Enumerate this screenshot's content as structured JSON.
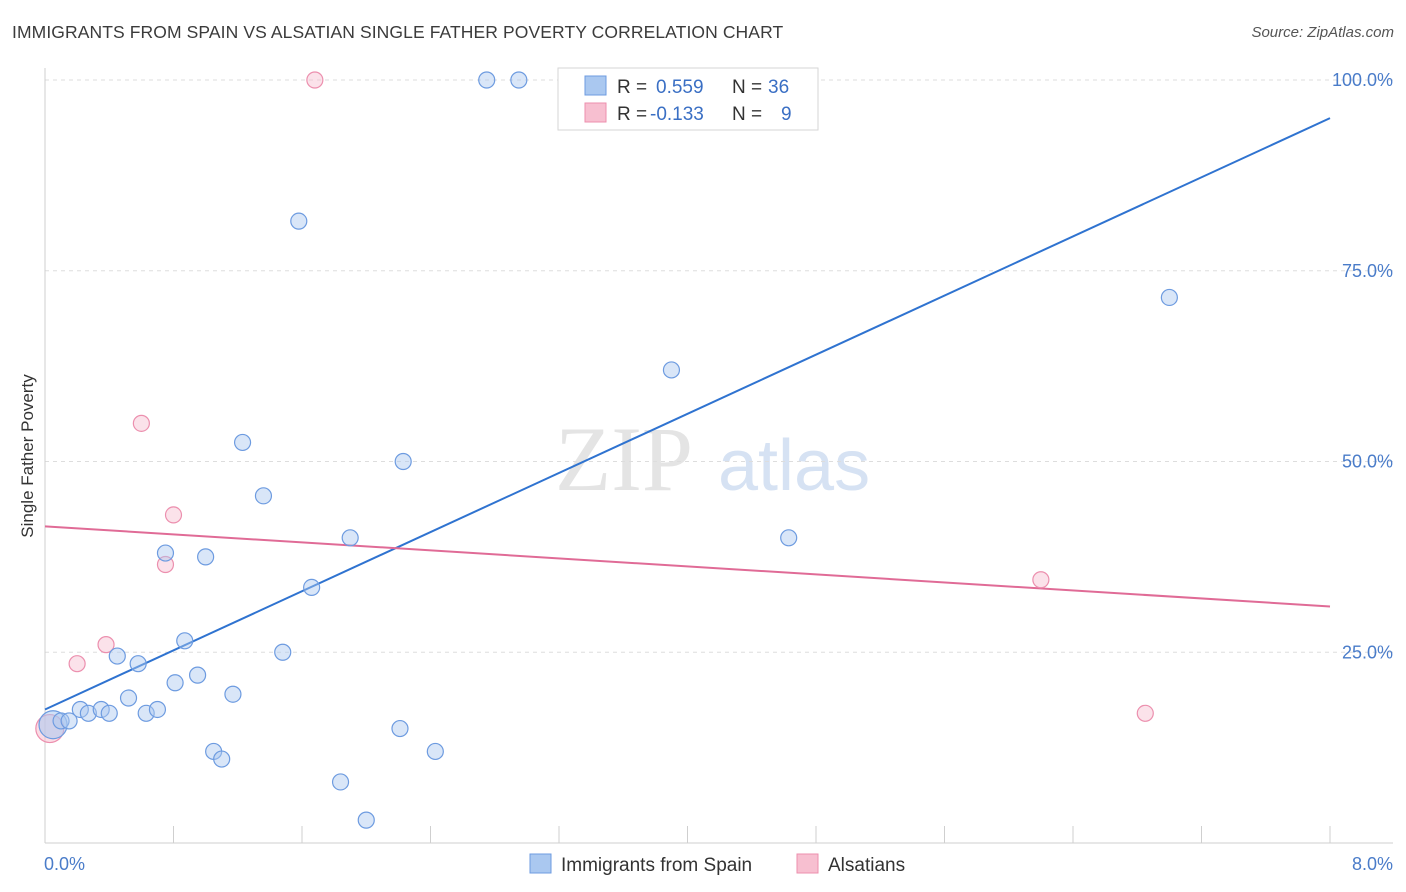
{
  "title": "IMMIGRANTS FROM SPAIN VS ALSATIAN SINGLE FATHER POVERTY CORRELATION CHART",
  "source": "Source: ZipAtlas.com",
  "watermark": {
    "zip": "ZIP",
    "atlas": "atlas"
  },
  "colors": {
    "blue_fill": "#aac8f0",
    "blue_stroke": "#6d9be0",
    "blue_line": "#2f73d0",
    "pink_fill": "#f7bfd0",
    "pink_stroke": "#ec8fae",
    "pink_line": "#e06b96",
    "tick_text": "#4a7cc9",
    "grid": "#dddddd"
  },
  "legend": {
    "rows": [
      {
        "r_label": "R =",
        "r_value": "0.559",
        "n_label": "N =",
        "n_value": "36",
        "series": "blue"
      },
      {
        "r_label": "R =",
        "r_value": "-0.133",
        "n_label": "N =",
        "n_value": "9",
        "series": "pink"
      }
    ]
  },
  "chart_data": {
    "type": "scatter",
    "title": "IMMIGRANTS FROM SPAIN VS ALSATIAN SINGLE FATHER POVERTY CORRELATION CHART",
    "xlabel": "",
    "ylabel": "Single Father Poverty",
    "xlim": [
      0,
      8
    ],
    "ylim": [
      0,
      100
    ],
    "x_tick_labels": [
      "0.0%",
      "8.0%"
    ],
    "y_ticks": [
      25,
      50,
      75,
      100
    ],
    "y_tick_labels": [
      "25.0%",
      "50.0%",
      "75.0%",
      "100.0%"
    ],
    "grid": true,
    "series": [
      {
        "name": "Immigrants from Spain",
        "color": "blue",
        "points": [
          [
            0.05,
            15.5
          ],
          [
            0.1,
            16.0
          ],
          [
            0.15,
            16.0
          ],
          [
            0.22,
            17.5
          ],
          [
            0.27,
            17.0
          ],
          [
            0.35,
            17.5
          ],
          [
            0.4,
            17.0
          ],
          [
            0.45,
            24.5
          ],
          [
            0.52,
            19.0
          ],
          [
            0.58,
            23.5
          ],
          [
            0.63,
            17.0
          ],
          [
            0.7,
            17.5
          ],
          [
            0.75,
            38.0
          ],
          [
            0.81,
            21.0
          ],
          [
            0.87,
            26.5
          ],
          [
            0.95,
            22.0
          ],
          [
            1.0,
            37.5
          ],
          [
            1.05,
            12.0
          ],
          [
            1.1,
            11.0
          ],
          [
            1.17,
            19.5
          ],
          [
            1.23,
            52.5
          ],
          [
            1.36,
            45.5
          ],
          [
            1.48,
            25.0
          ],
          [
            1.58,
            81.5
          ],
          [
            1.66,
            33.5
          ],
          [
            1.84,
            8.0
          ],
          [
            1.9,
            40.0
          ],
          [
            2.0,
            3.0
          ],
          [
            2.21,
            15.0
          ],
          [
            2.23,
            50.0
          ],
          [
            2.43,
            12.0
          ],
          [
            2.75,
            100.0
          ],
          [
            2.95,
            100.0
          ],
          [
            3.9,
            62.0
          ],
          [
            4.63,
            40.0
          ],
          [
            7.0,
            71.5
          ]
        ],
        "trend": {
          "x": [
            0,
            8
          ],
          "y": [
            17.5,
            95.0
          ]
        },
        "R": 0.559,
        "N": 36
      },
      {
        "name": "Alsatians",
        "color": "pink",
        "points": [
          [
            0.03,
            15.0
          ],
          [
            0.2,
            23.5
          ],
          [
            0.38,
            26.0
          ],
          [
            0.6,
            55.0
          ],
          [
            0.75,
            36.5
          ],
          [
            0.8,
            43.0
          ],
          [
            1.68,
            100.0
          ],
          [
            6.2,
            34.5
          ],
          [
            6.85,
            17.0
          ]
        ],
        "trend": {
          "x": [
            0,
            8
          ],
          "y": [
            41.5,
            31.0
          ]
        },
        "R": -0.133,
        "N": 9
      }
    ]
  }
}
